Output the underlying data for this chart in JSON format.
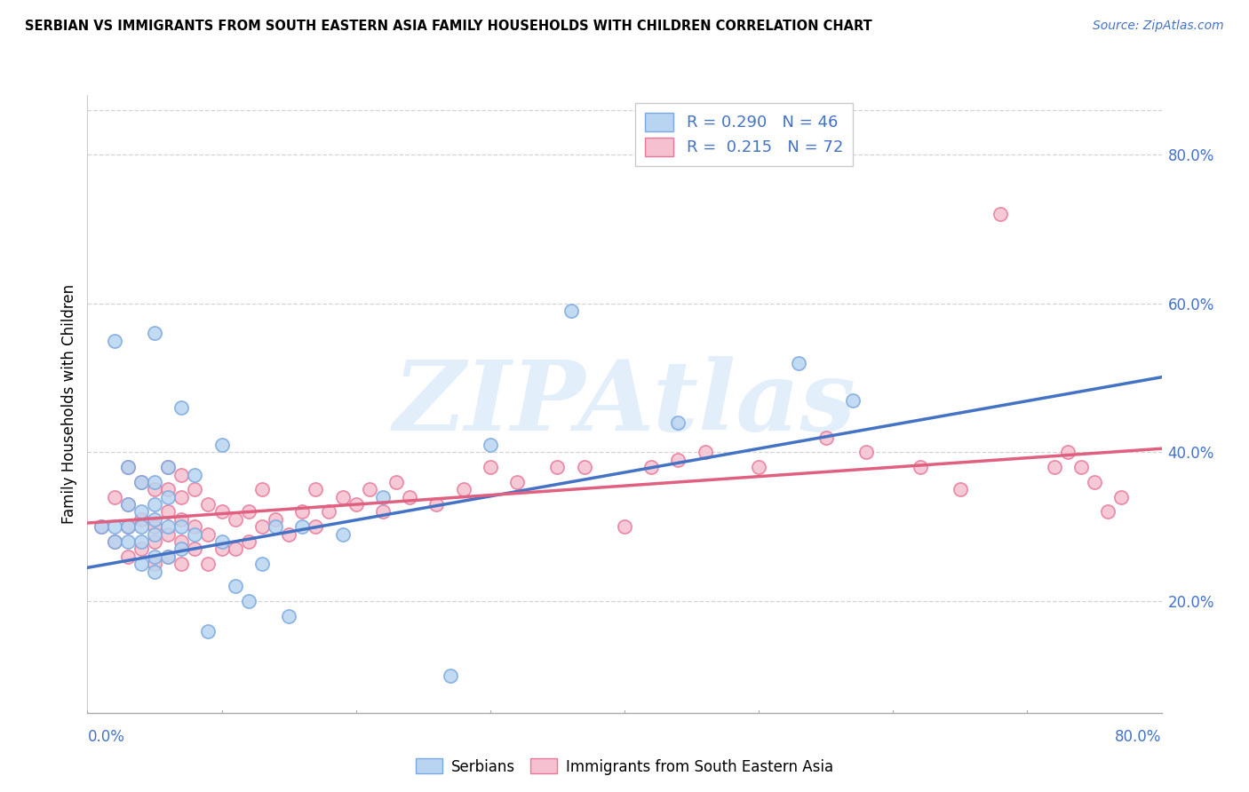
{
  "title": "SERBIAN VS IMMIGRANTS FROM SOUTH EASTERN ASIA FAMILY HOUSEHOLDS WITH CHILDREN CORRELATION CHART",
  "source": "Source: ZipAtlas.com",
  "ylabel": "Family Households with Children",
  "y_tick_labels": [
    "20.0%",
    "40.0%",
    "60.0%",
    "80.0%"
  ],
  "y_tick_values": [
    0.2,
    0.4,
    0.6,
    0.8
  ],
  "xlim": [
    0.0,
    0.8
  ],
  "ylim": [
    0.05,
    0.88
  ],
  "watermark": "ZIPAtlas",
  "legend_r1": "R = 0.290   N = 46",
  "legend_r2": "R =  0.215   N = 72",
  "serbian_intercept": 0.245,
  "serbian_slope": 0.32,
  "immigrant_intercept": 0.305,
  "immigrant_slope": 0.125,
  "serbian_x": [
    0.01,
    0.02,
    0.02,
    0.02,
    0.03,
    0.03,
    0.03,
    0.03,
    0.04,
    0.04,
    0.04,
    0.04,
    0.04,
    0.05,
    0.05,
    0.05,
    0.05,
    0.05,
    0.05,
    0.05,
    0.06,
    0.06,
    0.06,
    0.06,
    0.07,
    0.07,
    0.07,
    0.08,
    0.08,
    0.09,
    0.1,
    0.1,
    0.11,
    0.12,
    0.13,
    0.14,
    0.15,
    0.16,
    0.19,
    0.22,
    0.27,
    0.3,
    0.36,
    0.44,
    0.53,
    0.57
  ],
  "serbian_y": [
    0.3,
    0.28,
    0.3,
    0.55,
    0.28,
    0.3,
    0.33,
    0.38,
    0.25,
    0.28,
    0.3,
    0.32,
    0.36,
    0.24,
    0.26,
    0.29,
    0.31,
    0.33,
    0.36,
    0.56,
    0.26,
    0.3,
    0.34,
    0.38,
    0.27,
    0.3,
    0.46,
    0.29,
    0.37,
    0.16,
    0.28,
    0.41,
    0.22,
    0.2,
    0.25,
    0.3,
    0.18,
    0.3,
    0.29,
    0.34,
    0.1,
    0.41,
    0.59,
    0.44,
    0.52,
    0.47
  ],
  "immigrant_x": [
    0.01,
    0.02,
    0.02,
    0.03,
    0.03,
    0.03,
    0.03,
    0.04,
    0.04,
    0.04,
    0.05,
    0.05,
    0.05,
    0.05,
    0.06,
    0.06,
    0.06,
    0.06,
    0.06,
    0.07,
    0.07,
    0.07,
    0.07,
    0.07,
    0.08,
    0.08,
    0.08,
    0.09,
    0.09,
    0.09,
    0.1,
    0.1,
    0.11,
    0.11,
    0.12,
    0.12,
    0.13,
    0.13,
    0.14,
    0.15,
    0.16,
    0.17,
    0.17,
    0.18,
    0.19,
    0.2,
    0.21,
    0.22,
    0.23,
    0.24,
    0.26,
    0.28,
    0.3,
    0.32,
    0.35,
    0.37,
    0.4,
    0.42,
    0.44,
    0.46,
    0.5,
    0.55,
    0.58,
    0.62,
    0.65,
    0.68,
    0.72,
    0.73,
    0.74,
    0.75,
    0.76,
    0.77
  ],
  "immigrant_y": [
    0.3,
    0.28,
    0.34,
    0.26,
    0.3,
    0.33,
    0.38,
    0.27,
    0.31,
    0.36,
    0.25,
    0.28,
    0.3,
    0.35,
    0.26,
    0.29,
    0.32,
    0.35,
    0.38,
    0.25,
    0.28,
    0.31,
    0.34,
    0.37,
    0.27,
    0.3,
    0.35,
    0.25,
    0.29,
    0.33,
    0.27,
    0.32,
    0.27,
    0.31,
    0.28,
    0.32,
    0.3,
    0.35,
    0.31,
    0.29,
    0.32,
    0.3,
    0.35,
    0.32,
    0.34,
    0.33,
    0.35,
    0.32,
    0.36,
    0.34,
    0.33,
    0.35,
    0.38,
    0.36,
    0.38,
    0.38,
    0.3,
    0.38,
    0.39,
    0.4,
    0.38,
    0.42,
    0.4,
    0.38,
    0.35,
    0.72,
    0.38,
    0.4,
    0.38,
    0.36,
    0.32,
    0.34
  ]
}
